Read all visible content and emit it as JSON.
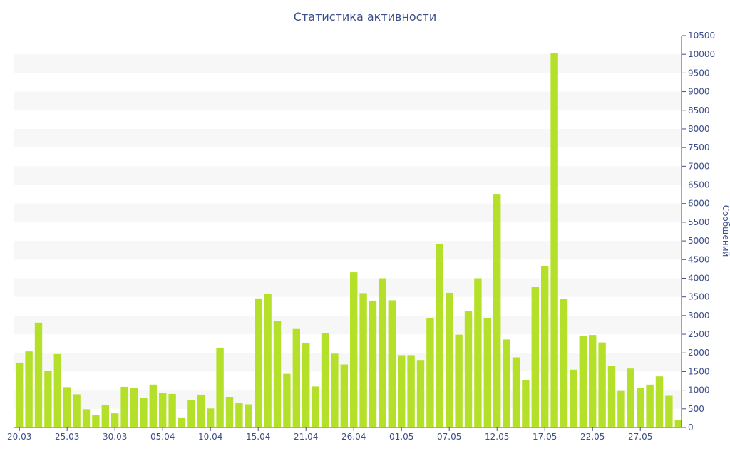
{
  "chart_data": {
    "type": "bar",
    "title": "Статистика активности",
    "ylabel": "Сообщений",
    "xlabel": "",
    "ylim": [
      0,
      10500
    ],
    "y_ticks": [
      0,
      500,
      1000,
      1500,
      2000,
      2500,
      3000,
      3500,
      4000,
      4500,
      5000,
      5500,
      6000,
      6500,
      7000,
      7500,
      8000,
      8500,
      9000,
      9500,
      10000,
      10500
    ],
    "x_tick_labels": [
      "20.03",
      "25.03",
      "30.03",
      "05.04",
      "10.04",
      "15.04",
      "21.04",
      "26.04",
      "01.05",
      "07.05",
      "12.05",
      "17.05",
      "22.05",
      "27.05"
    ],
    "x_tick_indices": [
      0,
      5,
      10,
      15,
      20,
      25,
      30,
      35,
      40,
      45,
      50,
      55,
      60,
      65
    ],
    "grid": "alternating horizontal bands",
    "y_axis_position": "right",
    "bar_color": "#b5e02a",
    "band_color": "#f7f7f7",
    "text_color": "#3d4f8a",
    "values": [
      1740,
      2040,
      2810,
      1510,
      1970,
      1080,
      890,
      490,
      330,
      610,
      380,
      1090,
      1050,
      790,
      1150,
      920,
      900,
      270,
      740,
      880,
      510,
      2140,
      820,
      660,
      620,
      3460,
      3580,
      2860,
      1440,
      2640,
      2270,
      1100,
      2520,
      1980,
      1690,
      4160,
      3600,
      3400,
      4000,
      3410,
      1940,
      1940,
      1810,
      2940,
      4920,
      3610,
      2490,
      3130,
      4000,
      2940,
      6260,
      2360,
      1880,
      1270,
      3760,
      4320,
      10040,
      3440,
      1550,
      2460,
      2480,
      2280,
      1660,
      980,
      1580,
      1050,
      1150,
      1370,
      850,
      210
    ]
  }
}
